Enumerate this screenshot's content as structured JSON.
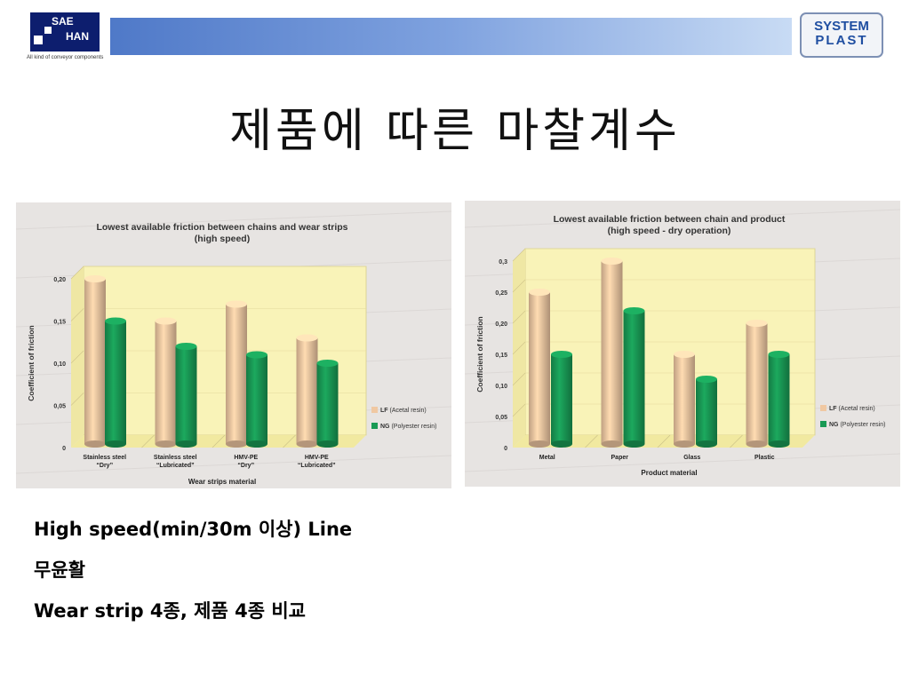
{
  "header": {
    "left_logo": {
      "line1": "SAE",
      "line2": "HAN",
      "tagline": "All kind of conveyor components"
    },
    "right_logo": {
      "line1": "SYSTEM",
      "line2": "PLAST"
    }
  },
  "title": "제품에 따른 마찰계수",
  "colors": {
    "lf": "#f0c8a2",
    "ng": "#199a55",
    "plot_bg": "#f9f3b8",
    "floor": "#f1e9a0"
  },
  "chart_data": [
    {
      "type": "bar",
      "title": "Lowest available friction between chains and wear strips",
      "subtitle": "(high speed)",
      "ylabel": "Coefficient of friction",
      "xlabel": "Wear strips material",
      "ylim": [
        0,
        0.2
      ],
      "yticks": [
        "0",
        "0,05",
        "0,10",
        "0,15",
        "0,20"
      ],
      "categories": [
        [
          "Stainless steel",
          "“Dry”"
        ],
        [
          "Stainless steel",
          "“Lubricated”"
        ],
        [
          "HMV-PE",
          "“Dry”"
        ],
        [
          "HMV-PE",
          "“Lubricated”"
        ]
      ],
      "series": [
        {
          "name_code": "LF",
          "name_desc": "(Acetal resin)",
          "values": [
            0.2,
            0.15,
            0.17,
            0.13
          ]
        },
        {
          "name_code": "NG",
          "name_desc": "(Polyester resin)",
          "values": [
            0.15,
            0.12,
            0.11,
            0.1
          ]
        }
      ],
      "legend": "right"
    },
    {
      "type": "bar",
      "title": "Lowest available friction between chain and product",
      "subtitle": "(high speed - dry operation)",
      "ylabel": "Coefficient of friction",
      "xlabel": "Product material",
      "ylim": [
        0,
        0.3
      ],
      "yticks": [
        "0",
        "0,05",
        "0,10",
        "0,15",
        "0,20",
        "0,25",
        "0,3"
      ],
      "categories": [
        [
          "Metal"
        ],
        [
          "Paper"
        ],
        [
          "Glass"
        ],
        [
          "Plastic"
        ]
      ],
      "series": [
        {
          "name_code": "LF",
          "name_desc": "(Acetal resin)",
          "values": [
            0.25,
            0.3,
            0.15,
            0.2
          ]
        },
        {
          "name_code": "NG",
          "name_desc": "(Polyester resin)",
          "values": [
            0.15,
            0.22,
            0.11,
            0.15
          ]
        }
      ],
      "legend": "right"
    }
  ],
  "bullets": [
    "High speed(min/30m 이상) Line",
    "무윤활",
    "Wear strip 4종, 제품 4종 비교"
  ]
}
